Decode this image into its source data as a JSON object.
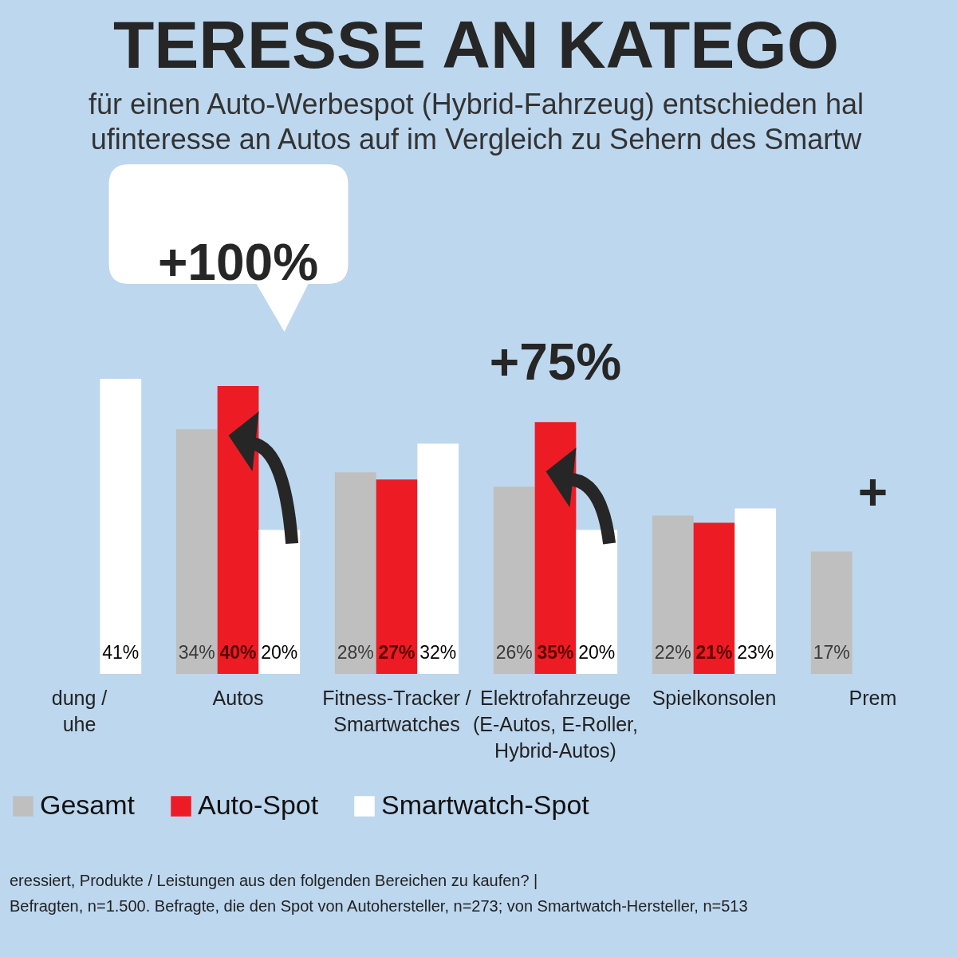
{
  "chart_data": {
    "type": "bar",
    "title": "TERESSE AN KATEGO",
    "subtitle": [
      "für einen Auto-Werbespot (Hybrid-Fahrzeug) entschieden hal",
      "ufinteresse an Autos auf im Vergleich zu Sehern des Smartw"
    ],
    "categories": [
      "dung /\nuhe",
      "Autos",
      "Fitness-Tracker /\nSmartwatches",
      "Elektrofahrzeuge\n(E-Autos, E-Roller,\nHybrid-Autos)",
      "Spielkonsolen",
      "Prem"
    ],
    "series": [
      {
        "name": "Gesamt",
        "color": "#bfbfbf",
        "values": [
          null,
          34,
          28,
          26,
          22,
          17
        ],
        "value_labels": [
          null,
          "34%",
          "28%",
          "26%",
          "22%",
          "17%"
        ]
      },
      {
        "name": "Auto-Spot",
        "color": "#ed1c24",
        "values": [
          null,
          40,
          27,
          35,
          21,
          null
        ],
        "value_labels": [
          null,
          "40%",
          "27%",
          "35%",
          "21%",
          null
        ]
      },
      {
        "name": "Smartwatch-Spot",
        "color": "#ffffff",
        "values": [
          41,
          20,
          32,
          20,
          23,
          null
        ],
        "value_labels": [
          "41%",
          "20%",
          "32%",
          "20%",
          "23%",
          null
        ]
      }
    ],
    "legend": "bottom",
    "grid": false,
    "annotations": [
      "+100%",
      "+75%",
      "+",
      "eressiert, Produkte / Leistungen aus den folgenden Bereichen zu kaufen? |",
      "Befragten, n=1.500. Befragte, die den Spot von Autohersteller, n=273; von Smartwatch-Hersteller, n=513"
    ]
  }
}
